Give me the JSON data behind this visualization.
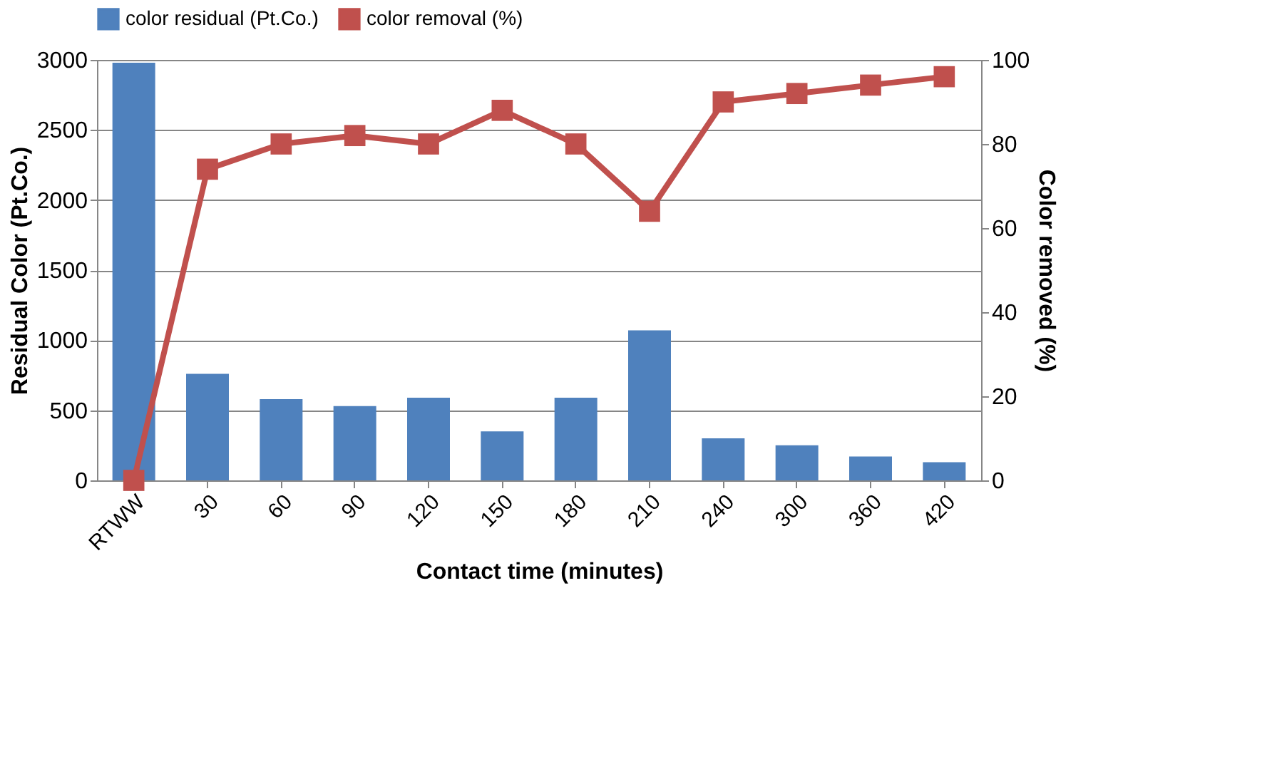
{
  "chart_data": {
    "type": "bar",
    "categories": [
      "RTWW",
      "30",
      "60",
      "90",
      "120",
      "150",
      "180",
      "210",
      "240",
      "300",
      "360",
      "420"
    ],
    "series": [
      {
        "name": "color residual (Pt.Co.)",
        "color": "#4f81bd",
        "values": [
          2980,
          760,
          580,
          530,
          590,
          350,
          590,
          1070,
          300,
          250,
          170,
          130
        ]
      },
      {
        "name": "color removal      (%)",
        "type": "line",
        "axis": "y2",
        "color": "#c0504d",
        "marker": "square",
        "values": [
          0,
          74,
          80,
          82,
          80,
          88,
          80,
          64,
          90,
          92,
          94,
          96
        ]
      }
    ],
    "xlabel": "Contact time (minutes)",
    "ylabel": "Residual Color (Pt.Co.)",
    "y2label": "Color removed (%)",
    "ylim": [
      0,
      3000
    ],
    "yticks": [
      0,
      500,
      1000,
      1500,
      2000,
      2500,
      3000
    ],
    "y2lim": [
      0,
      100
    ],
    "y2ticks": [
      0,
      20,
      40,
      60,
      80,
      100
    ],
    "grid": "y",
    "legend": "top"
  }
}
